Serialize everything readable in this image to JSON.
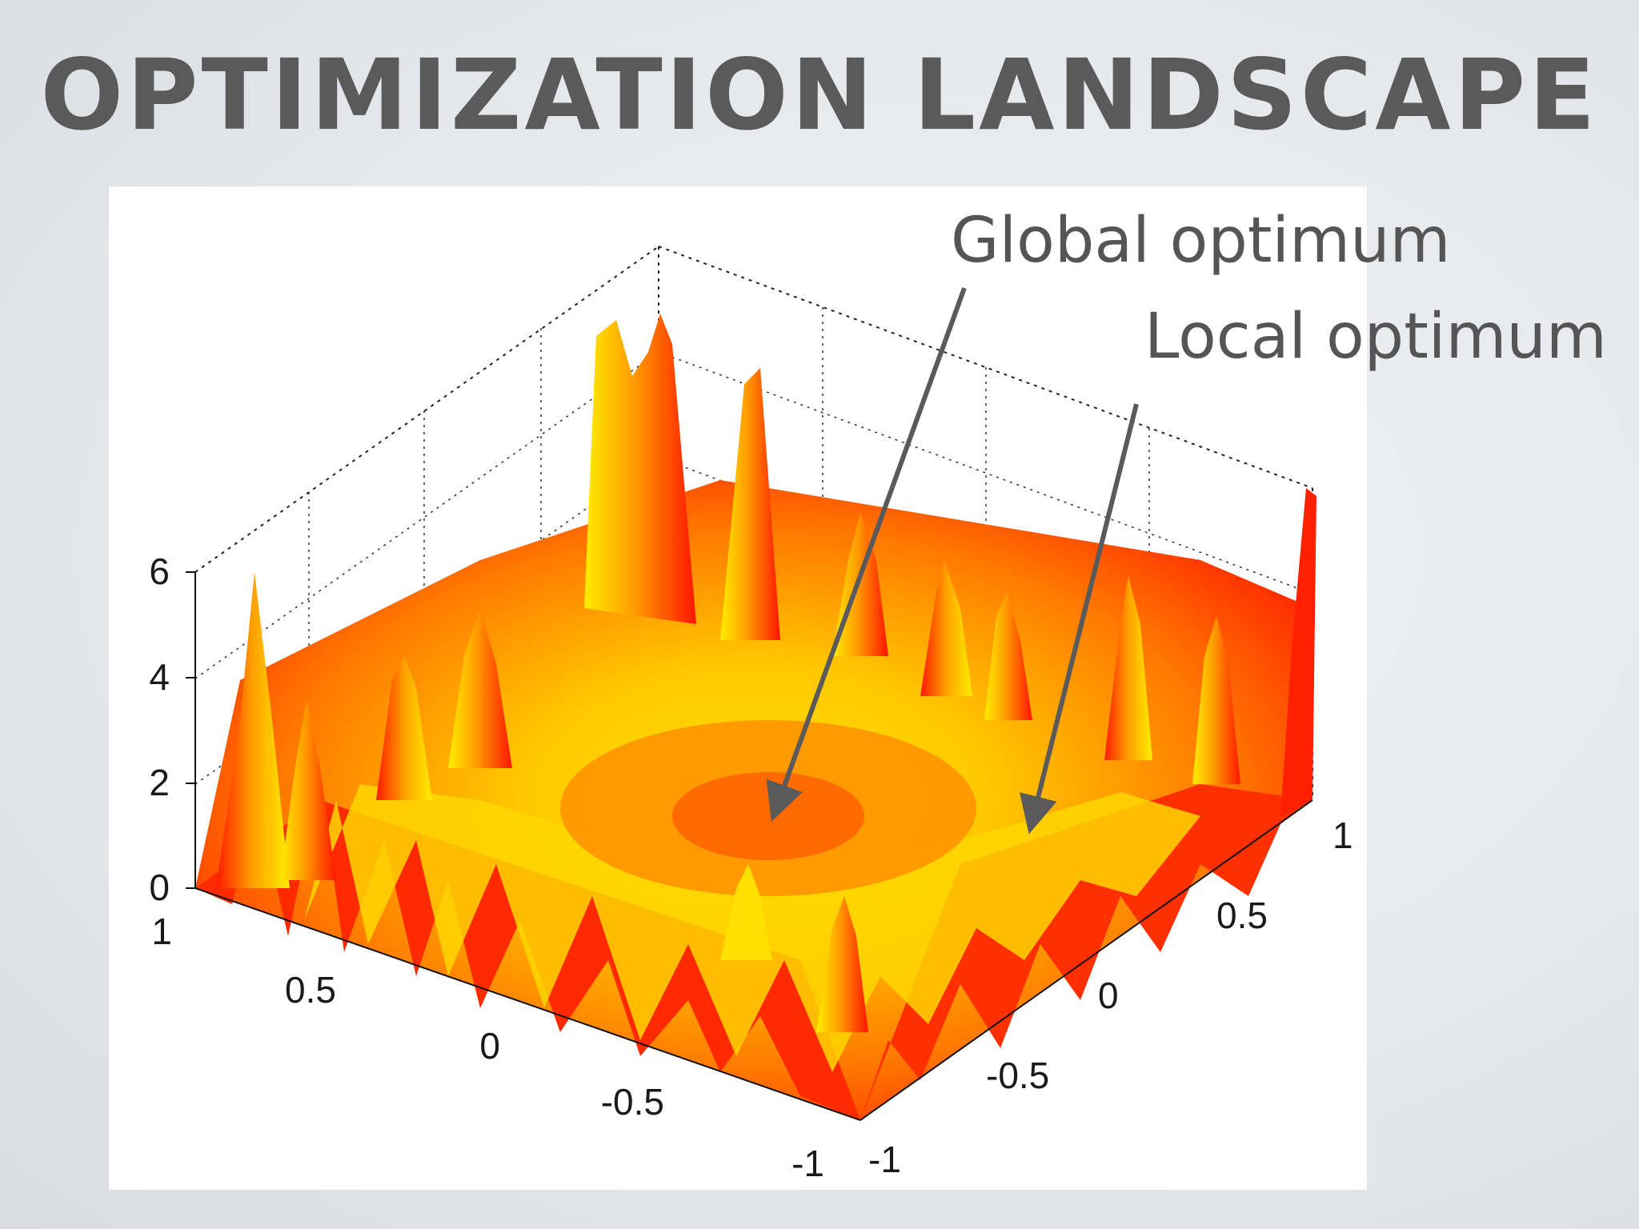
{
  "slide": {
    "title": "OPTIMIZATION LANDSCAPE"
  },
  "chart_data": {
    "type": "surface3d",
    "description_of_surface": "",
    "colormap": "autumn",
    "colors": {
      "low": "#ff0000",
      "mid": "#ff8c00",
      "high": "#ffff00",
      "arrow": "#5a5a5a",
      "text": "#555555"
    },
    "x_ticks": [
      "1",
      "0.5",
      "0",
      "-0.5",
      "-1"
    ],
    "y_ticks": [
      "-1",
      "-0.5",
      "0",
      "0.5",
      "1"
    ],
    "z_ticks": [
      "6",
      "4",
      "2",
      "0"
    ],
    "xlim": [
      -1,
      1
    ],
    "ylim": [
      -1,
      1
    ],
    "zlim": [
      0,
      6
    ],
    "grid": true,
    "annotations": [
      {
        "label": "Global optimum",
        "x": 0.1,
        "y": 0.0,
        "z": 0.6
      },
      {
        "label": "Local optimum",
        "x": -0.2,
        "y": 0.7,
        "z": 1.0
      }
    ]
  }
}
